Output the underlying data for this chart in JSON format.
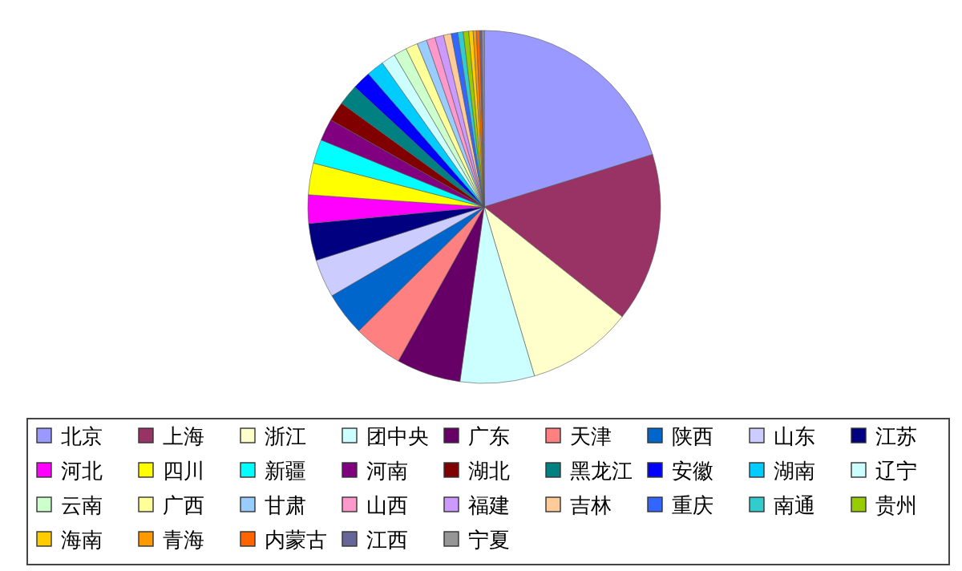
{
  "chart_data": {
    "type": "pie",
    "legend": "bottom",
    "categories": [
      "北京",
      "上海",
      "浙江",
      "团中央",
      "广东",
      "天津",
      "陕西",
      "山东",
      "江苏",
      "河北",
      "四川",
      "新疆",
      "河南",
      "湖北",
      "黑龙江",
      "安徽",
      "湖南",
      "辽宁",
      "云南",
      "广西",
      "甘肃",
      "山西",
      "福建",
      "吉林",
      "重庆",
      "南通",
      "贵州",
      "海南",
      "青海",
      "内蒙古",
      "江西",
      "宁夏"
    ],
    "values": [
      20.2,
      15.5,
      9.7,
      6.8,
      5.9,
      4.5,
      4.0,
      3.5,
      3.4,
      2.6,
      2.9,
      2.2,
      2.0,
      1.8,
      1.9,
      1.7,
      1.6,
      1.3,
      1.2,
      1.1,
      0.9,
      0.8,
      0.8,
      0.7,
      0.6,
      0.5,
      0.5,
      0.4,
      0.3,
      0.3,
      0.2,
      0.2
    ],
    "colors": [
      "#9999ff",
      "#993366",
      "#ffffcc",
      "#ccffff",
      "#660066",
      "#ff8080",
      "#0066cc",
      "#ccccff",
      "#000080",
      "#ff00ff",
      "#ffff00",
      "#00ffff",
      "#800080",
      "#800000",
      "#008080",
      "#0000ff",
      "#00ccff",
      "#ccffff",
      "#ccffcc",
      "#ffff99",
      "#99ccff",
      "#ff99cc",
      "#cc99ff",
      "#ffcc99",
      "#3366ff",
      "#33cccc",
      "#99cc00",
      "#ffcc00",
      "#ff9900",
      "#ff6600",
      "#666699",
      "#969696"
    ]
  }
}
